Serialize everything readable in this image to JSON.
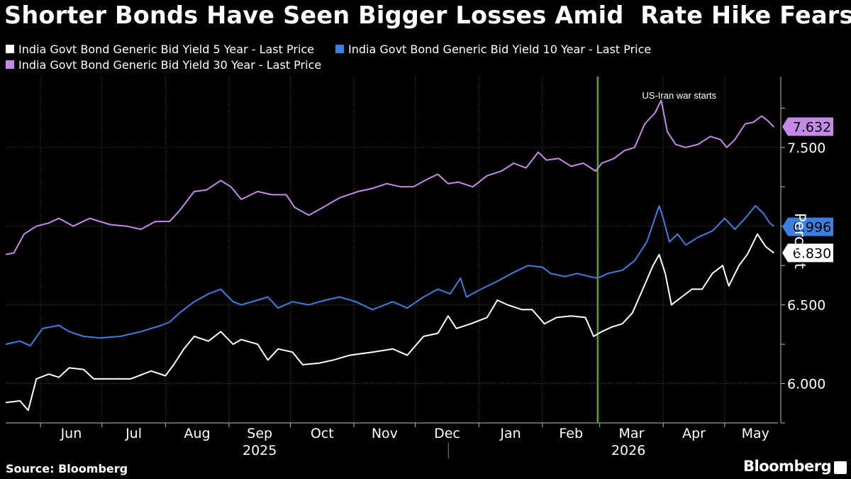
{
  "title": "Shorter Bonds Have Seen Bigger Losses Amid  Rate Hike Fears",
  "source": "Source: Bloomberg",
  "brand": "Bloomberg",
  "colors": {
    "background": "#000000",
    "series_5y": "#ffffff",
    "series_10y": "#3b7fe0",
    "series_30y": "#c48ae8",
    "event_line": "#5a9e2f",
    "grid": "#4a4a4a"
  },
  "chart_data": {
    "type": "line",
    "title": "Shorter Bonds Have Seen Bigger Losses Amid  Rate Hike Fears",
    "xlabel": "",
    "ylabel": "Percent",
    "ylim": [
      5.75,
      7.95
    ],
    "y_ticks": [
      "6.000",
      "6.500",
      "7.500"
    ],
    "x_range": [
      "2025-05-15",
      "2026-05-27"
    ],
    "x_tick_labels": [
      "Jun",
      "Jul",
      "Aug",
      "Sep",
      "Oct",
      "Nov",
      "Dec",
      "Jan",
      "Feb",
      "Mar",
      "Apr",
      "May"
    ],
    "year_labels": [
      "2025",
      "2026"
    ],
    "grid": true,
    "legend_position": "top-left",
    "annotations": [
      {
        "text": "US-Iran war starts",
        "x": "2026-02-28"
      }
    ],
    "series": [
      {
        "name": "India Govt Bond Generic Bid Yield 5 Year - Last Price",
        "color": "#ffffff",
        "last_value": "6.830",
        "points": [
          [
            "2025-05-15",
            5.88
          ],
          [
            "2025-05-22",
            5.89
          ],
          [
            "2025-05-26",
            5.83
          ],
          [
            "2025-05-30",
            6.03
          ],
          [
            "2025-06-05",
            6.06
          ],
          [
            "2025-06-10",
            6.04
          ],
          [
            "2025-06-15",
            6.1
          ],
          [
            "2025-06-22",
            6.09
          ],
          [
            "2025-06-27",
            6.03
          ],
          [
            "2025-07-05",
            6.03
          ],
          [
            "2025-07-15",
            6.03
          ],
          [
            "2025-07-25",
            6.08
          ],
          [
            "2025-08-01",
            6.05
          ],
          [
            "2025-08-05",
            6.12
          ],
          [
            "2025-08-10",
            6.22
          ],
          [
            "2025-08-15",
            6.3
          ],
          [
            "2025-08-22",
            6.27
          ],
          [
            "2025-08-28",
            6.33
          ],
          [
            "2025-09-03",
            6.25
          ],
          [
            "2025-09-07",
            6.28
          ],
          [
            "2025-09-15",
            6.25
          ],
          [
            "2025-09-20",
            6.15
          ],
          [
            "2025-09-25",
            6.22
          ],
          [
            "2025-10-02",
            6.2
          ],
          [
            "2025-10-07",
            6.12
          ],
          [
            "2025-10-15",
            6.13
          ],
          [
            "2025-10-22",
            6.15
          ],
          [
            "2025-10-30",
            6.18
          ],
          [
            "2025-11-10",
            6.2
          ],
          [
            "2025-11-20",
            6.22
          ],
          [
            "2025-11-27",
            6.18
          ],
          [
            "2025-12-05",
            6.3
          ],
          [
            "2025-12-12",
            6.32
          ],
          [
            "2025-12-17",
            6.43
          ],
          [
            "2025-12-21",
            6.35
          ],
          [
            "2025-12-28",
            6.38
          ],
          [
            "2026-01-05",
            6.42
          ],
          [
            "2026-01-10",
            6.53
          ],
          [
            "2026-01-15",
            6.5
          ],
          [
            "2026-01-22",
            6.47
          ],
          [
            "2026-01-27",
            6.47
          ],
          [
            "2026-02-02",
            6.38
          ],
          [
            "2026-02-08",
            6.42
          ],
          [
            "2026-02-15",
            6.43
          ],
          [
            "2026-02-22",
            6.42
          ],
          [
            "2026-02-26",
            6.3
          ],
          [
            "2026-03-02",
            6.33
          ],
          [
            "2026-03-07",
            6.36
          ],
          [
            "2026-03-12",
            6.38
          ],
          [
            "2026-03-17",
            6.45
          ],
          [
            "2026-03-22",
            6.6
          ],
          [
            "2026-03-27",
            6.75
          ],
          [
            "2026-03-30",
            6.82
          ],
          [
            "2026-04-02",
            6.7
          ],
          [
            "2026-04-05",
            6.5
          ],
          [
            "2026-04-10",
            6.55
          ],
          [
            "2026-04-15",
            6.6
          ],
          [
            "2026-04-20",
            6.6
          ],
          [
            "2026-04-25",
            6.7
          ],
          [
            "2026-04-30",
            6.75
          ],
          [
            "2026-05-03",
            6.62
          ],
          [
            "2026-05-08",
            6.75
          ],
          [
            "2026-05-12",
            6.82
          ],
          [
            "2026-05-17",
            6.95
          ],
          [
            "2026-05-21",
            6.87
          ],
          [
            "2026-05-25",
            6.83
          ]
        ]
      },
      {
        "name": "India Govt Bond Generic Bid Yield 10 Year - Last Price",
        "color": "#3b7fe0",
        "last_value": "6.996",
        "points": [
          [
            "2025-05-15",
            6.25
          ],
          [
            "2025-05-22",
            6.27
          ],
          [
            "2025-05-27",
            6.24
          ],
          [
            "2025-06-02",
            6.35
          ],
          [
            "2025-06-10",
            6.37
          ],
          [
            "2025-06-15",
            6.33
          ],
          [
            "2025-06-22",
            6.3
          ],
          [
            "2025-06-30",
            6.29
          ],
          [
            "2025-07-10",
            6.3
          ],
          [
            "2025-07-20",
            6.33
          ],
          [
            "2025-07-30",
            6.37
          ],
          [
            "2025-08-03",
            6.39
          ],
          [
            "2025-08-08",
            6.45
          ],
          [
            "2025-08-15",
            6.52
          ],
          [
            "2025-08-22",
            6.57
          ],
          [
            "2025-08-28",
            6.6
          ],
          [
            "2025-09-03",
            6.52
          ],
          [
            "2025-09-07",
            6.5
          ],
          [
            "2025-09-15",
            6.53
          ],
          [
            "2025-09-20",
            6.55
          ],
          [
            "2025-09-25",
            6.48
          ],
          [
            "2025-10-02",
            6.52
          ],
          [
            "2025-10-10",
            6.5
          ],
          [
            "2025-10-18",
            6.53
          ],
          [
            "2025-10-25",
            6.55
          ],
          [
            "2025-11-02",
            6.52
          ],
          [
            "2025-11-10",
            6.47
          ],
          [
            "2025-11-20",
            6.52
          ],
          [
            "2025-11-27",
            6.48
          ],
          [
            "2025-12-05",
            6.55
          ],
          [
            "2025-12-12",
            6.6
          ],
          [
            "2025-12-18",
            6.57
          ],
          [
            "2025-12-23",
            6.67
          ],
          [
            "2025-12-26",
            6.55
          ],
          [
            "2026-01-02",
            6.6
          ],
          [
            "2026-01-10",
            6.65
          ],
          [
            "2026-01-17",
            6.7
          ],
          [
            "2026-01-25",
            6.75
          ],
          [
            "2026-02-01",
            6.74
          ],
          [
            "2026-02-05",
            6.7
          ],
          [
            "2026-02-12",
            6.68
          ],
          [
            "2026-02-18",
            6.7
          ],
          [
            "2026-02-24",
            6.68
          ],
          [
            "2026-02-28",
            6.67
          ],
          [
            "2026-03-05",
            6.7
          ],
          [
            "2026-03-12",
            6.72
          ],
          [
            "2026-03-18",
            6.78
          ],
          [
            "2026-03-24",
            6.9
          ],
          [
            "2026-03-30",
            7.13
          ],
          [
            "2026-04-01",
            7.05
          ],
          [
            "2026-04-04",
            6.9
          ],
          [
            "2026-04-08",
            6.95
          ],
          [
            "2026-04-12",
            6.88
          ],
          [
            "2026-04-18",
            6.93
          ],
          [
            "2026-04-25",
            6.97
          ],
          [
            "2026-05-01",
            7.05
          ],
          [
            "2026-05-06",
            6.98
          ],
          [
            "2026-05-11",
            7.05
          ],
          [
            "2026-05-16",
            7.13
          ],
          [
            "2026-05-20",
            7.08
          ],
          [
            "2026-05-23",
            7.02
          ],
          [
            "2026-05-25",
            7.0
          ]
        ]
      },
      {
        "name": "India Govt Bond Generic Bid Yield 30 Year - Last Price",
        "color": "#c48ae8",
        "last_value": "7.632",
        "points": [
          [
            "2025-05-15",
            6.82
          ],
          [
            "2025-05-19",
            6.83
          ],
          [
            "2025-05-24",
            6.95
          ],
          [
            "2025-05-30",
            7.0
          ],
          [
            "2025-06-05",
            7.02
          ],
          [
            "2025-06-10",
            7.05
          ],
          [
            "2025-06-17",
            7.0
          ],
          [
            "2025-06-25",
            7.05
          ],
          [
            "2025-07-05",
            7.01
          ],
          [
            "2025-07-13",
            7.0
          ],
          [
            "2025-07-20",
            6.98
          ],
          [
            "2025-07-27",
            7.03
          ],
          [
            "2025-08-03",
            7.03
          ],
          [
            "2025-08-08",
            7.1
          ],
          [
            "2025-08-15",
            7.22
          ],
          [
            "2025-08-21",
            7.23
          ],
          [
            "2025-08-28",
            7.29
          ],
          [
            "2025-09-02",
            7.25
          ],
          [
            "2025-09-07",
            7.17
          ],
          [
            "2025-09-15",
            7.22
          ],
          [
            "2025-09-22",
            7.2
          ],
          [
            "2025-09-29",
            7.2
          ],
          [
            "2025-10-03",
            7.12
          ],
          [
            "2025-10-10",
            7.07
          ],
          [
            "2025-10-17",
            7.12
          ],
          [
            "2025-10-25",
            7.18
          ],
          [
            "2025-11-03",
            7.22
          ],
          [
            "2025-11-10",
            7.24
          ],
          [
            "2025-11-17",
            7.27
          ],
          [
            "2025-11-24",
            7.25
          ],
          [
            "2025-11-30",
            7.25
          ],
          [
            "2025-12-07",
            7.3
          ],
          [
            "2025-12-12",
            7.33
          ],
          [
            "2025-12-17",
            7.27
          ],
          [
            "2025-12-22",
            7.28
          ],
          [
            "2025-12-29",
            7.25
          ],
          [
            "2026-01-05",
            7.32
          ],
          [
            "2026-01-12",
            7.35
          ],
          [
            "2026-01-18",
            7.4
          ],
          [
            "2026-01-24",
            7.37
          ],
          [
            "2026-01-30",
            7.47
          ],
          [
            "2026-02-03",
            7.42
          ],
          [
            "2026-02-09",
            7.43
          ],
          [
            "2026-02-15",
            7.38
          ],
          [
            "2026-02-21",
            7.4
          ],
          [
            "2026-02-27",
            7.35
          ],
          [
            "2026-03-02",
            7.4
          ],
          [
            "2026-03-08",
            7.43
          ],
          [
            "2026-03-13",
            7.48
          ],
          [
            "2026-03-18",
            7.5
          ],
          [
            "2026-03-23",
            7.65
          ],
          [
            "2026-03-28",
            7.72
          ],
          [
            "2026-03-31",
            7.8
          ],
          [
            "2026-04-03",
            7.6
          ],
          [
            "2026-04-07",
            7.52
          ],
          [
            "2026-04-12",
            7.5
          ],
          [
            "2026-04-18",
            7.52
          ],
          [
            "2026-04-24",
            7.57
          ],
          [
            "2026-04-29",
            7.55
          ],
          [
            "2026-05-02",
            7.5
          ],
          [
            "2026-05-06",
            7.55
          ],
          [
            "2026-05-11",
            7.65
          ],
          [
            "2026-05-15",
            7.66
          ],
          [
            "2026-05-19",
            7.7
          ],
          [
            "2026-05-22",
            7.67
          ],
          [
            "2026-05-25",
            7.63
          ]
        ]
      }
    ]
  }
}
